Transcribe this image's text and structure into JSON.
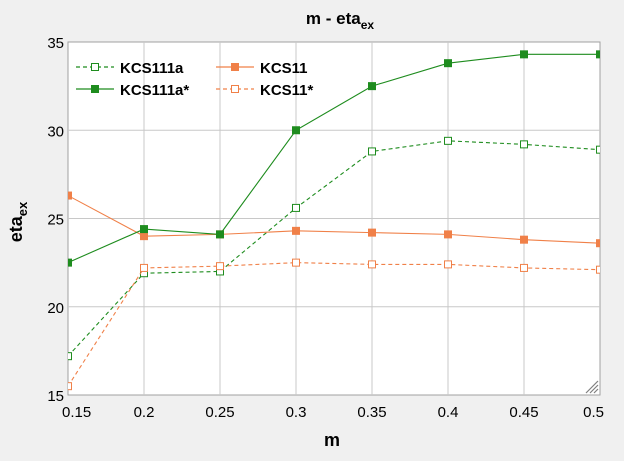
{
  "chart_data": {
    "type": "line",
    "title": {
      "main": "m - eta",
      "sub": "ex"
    },
    "xlabel": "m",
    "ylabel": {
      "main": "eta",
      "sub": "ex"
    },
    "x": [
      0.15,
      0.2,
      0.25,
      0.3,
      0.35,
      0.4,
      0.45,
      0.5
    ],
    "x_tick_labels": [
      "0.15",
      "0.2",
      "0.25",
      "0.3",
      "0.35",
      "0.4",
      "0.45",
      "0.5"
    ],
    "xlim": [
      0.15,
      0.5
    ],
    "ylim": [
      15,
      35
    ],
    "y_ticks": [
      15,
      20,
      25,
      30,
      35
    ],
    "y_tick_labels": [
      "15",
      "20",
      "25",
      "30",
      "35"
    ],
    "grid": true,
    "legend_position": "top-left",
    "series": [
      {
        "name": "KCS111a",
        "color": "#1e8c1e",
        "dashed": true,
        "marker": "open-square",
        "values": [
          17.2,
          21.9,
          22.0,
          25.6,
          28.8,
          29.4,
          29.2,
          28.9
        ]
      },
      {
        "name": "KCS11",
        "color": "#f08048",
        "dashed": false,
        "marker": "filled-square",
        "values": [
          26.3,
          24.0,
          24.1,
          24.3,
          24.2,
          24.1,
          23.8,
          23.6
        ]
      },
      {
        "name": "KCS111a*",
        "color": "#1e8c1e",
        "dashed": false,
        "marker": "filled-square",
        "values": [
          22.5,
          24.4,
          24.1,
          30.0,
          32.5,
          33.8,
          34.3,
          34.3
        ]
      },
      {
        "name": "KCS11*",
        "color": "#f08048",
        "dashed": true,
        "marker": "open-square",
        "values": [
          15.5,
          22.2,
          22.3,
          22.5,
          22.4,
          22.4,
          22.2,
          22.1
        ]
      }
    ]
  }
}
